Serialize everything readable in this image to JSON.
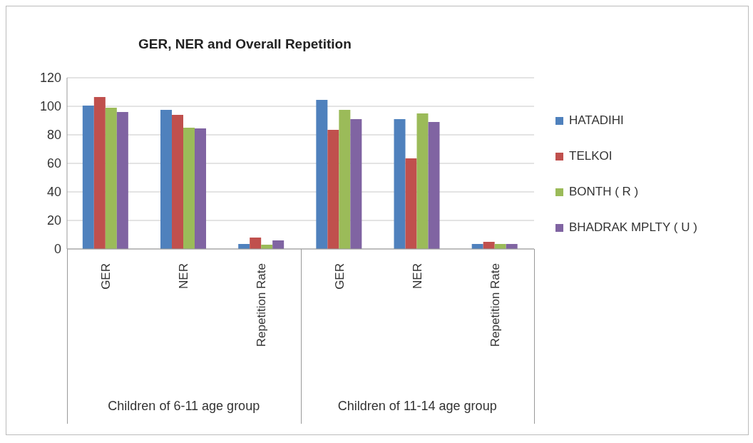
{
  "chart_data": {
    "type": "bar",
    "title": "GER, NER and Overall Repetition",
    "categories": [
      "GER",
      "NER",
      "Repetition Rate",
      "GER",
      "NER",
      "Repetition Rate"
    ],
    "series": [
      {
        "name": "HATADIHI",
        "color": "#4f81bd",
        "values": [
          100.5,
          97.5,
          3.5,
          104.5,
          91,
          3.5
        ]
      },
      {
        "name": "TELKOI",
        "color": "#c0504d",
        "values": [
          106.5,
          94,
          8,
          83.5,
          63.5,
          5
        ]
      },
      {
        "name": "BONTH ( R )",
        "color": "#9bbb59",
        "values": [
          99,
          85,
          3,
          97.5,
          95,
          3.5
        ]
      },
      {
        "name": "BHADRAK MPLTY ( U )",
        "color": "#8064a2",
        "values": [
          96,
          84.5,
          6,
          91,
          89,
          3.5
        ]
      }
    ],
    "annotations": [
      "Children of 6-11 age group",
      "Children of 11-14 age group"
    ],
    "ylim": [
      0,
      120
    ],
    "yticks": [
      0,
      20,
      40,
      60,
      80,
      100,
      120
    ],
    "grid": "y",
    "legend": "right"
  }
}
